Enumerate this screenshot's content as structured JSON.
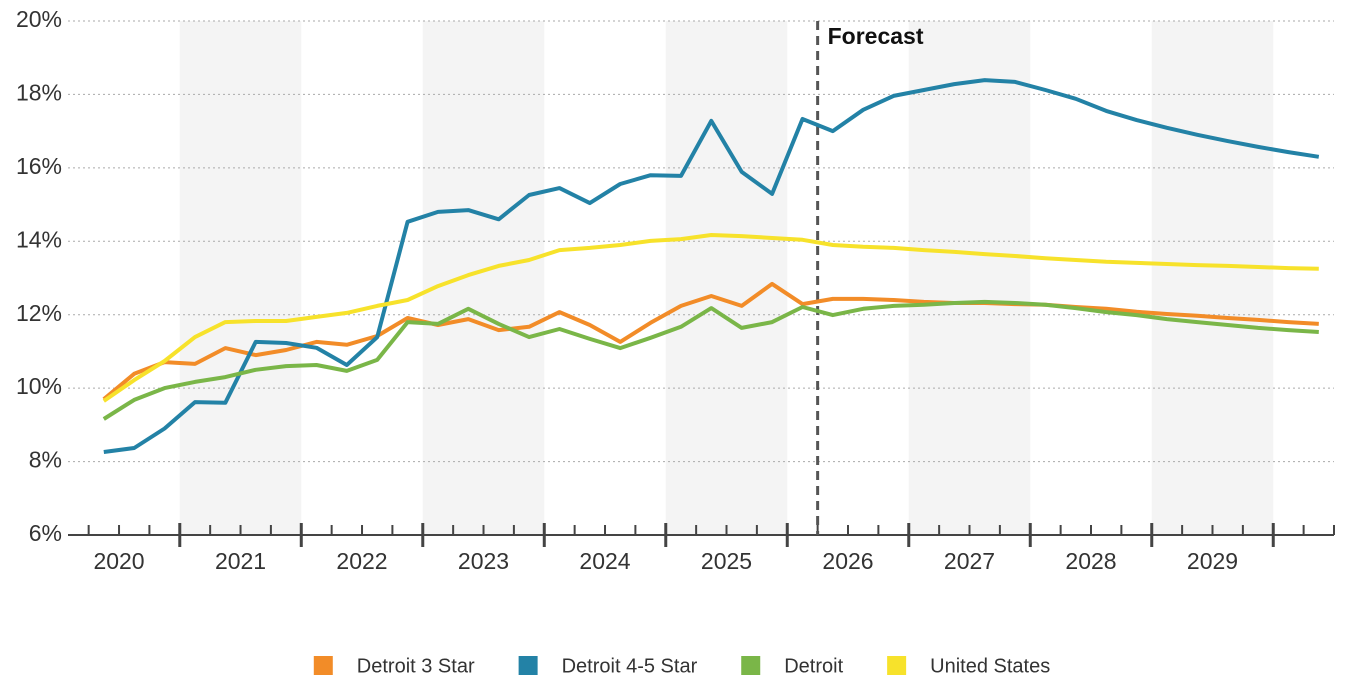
{
  "chart_data": {
    "type": "line",
    "x": [
      2020.375,
      2020.625,
      2020.875,
      2021.125,
      2021.375,
      2021.625,
      2021.875,
      2022.125,
      2022.375,
      2022.625,
      2022.875,
      2023.125,
      2023.375,
      2023.625,
      2023.875,
      2024.125,
      2024.375,
      2024.625,
      2024.875,
      2025.125,
      2025.375,
      2025.625,
      2025.875,
      2026.125,
      2026.375,
      2026.625,
      2026.875,
      2027.125,
      2027.375,
      2027.625,
      2027.875,
      2028.125,
      2028.375,
      2028.625,
      2028.875,
      2029.125,
      2029.375,
      2029.625,
      2029.875,
      2030.125,
      2030.375
    ],
    "series": [
      {
        "name": "Detroit 3 Star",
        "color": "#f28c28",
        "values": [
          9.7,
          10.39,
          10.71,
          10.66,
          11.09,
          10.9,
          11.04,
          11.26,
          11.18,
          11.42,
          11.91,
          11.72,
          11.88,
          11.58,
          11.67,
          12.07,
          11.72,
          11.26,
          11.78,
          12.24,
          12.51,
          12.24,
          12.84,
          12.29,
          12.43,
          12.43,
          12.4,
          12.35,
          12.32,
          12.32,
          12.29,
          12.27,
          12.21,
          12.16,
          12.08,
          12.02,
          11.97,
          11.91,
          11.86,
          11.8,
          11.75
        ]
      },
      {
        "name": "Detroit 4-5 Star",
        "color": "#2382a6",
        "values": [
          8.26,
          8.37,
          8.9,
          9.62,
          9.6,
          11.26,
          11.23,
          11.1,
          10.63,
          11.39,
          14.53,
          14.8,
          14.85,
          14.6,
          15.26,
          15.45,
          15.04,
          15.56,
          15.8,
          15.78,
          17.28,
          15.89,
          15.29,
          17.33,
          17.0,
          17.58,
          17.96,
          18.12,
          18.28,
          18.39,
          18.34,
          18.12,
          17.88,
          17.55,
          17.3,
          17.09,
          16.9,
          16.73,
          16.57,
          16.43,
          16.3
        ]
      },
      {
        "name": "Detroit",
        "color": "#7ab648",
        "values": [
          9.16,
          9.68,
          10.0,
          10.17,
          10.3,
          10.5,
          10.6,
          10.63,
          10.47,
          10.77,
          11.8,
          11.75,
          12.16,
          11.75,
          11.39,
          11.61,
          11.34,
          11.09,
          11.37,
          11.67,
          12.18,
          11.64,
          11.8,
          12.21,
          11.99,
          12.16,
          12.24,
          12.27,
          12.32,
          12.35,
          12.32,
          12.27,
          12.18,
          12.07,
          11.99,
          11.88,
          11.8,
          11.72,
          11.64,
          11.58,
          11.53
        ]
      },
      {
        "name": "United States",
        "color": "#f7e22b",
        "values": [
          9.65,
          10.22,
          10.74,
          11.39,
          11.8,
          11.83,
          11.83,
          11.94,
          12.05,
          12.24,
          12.4,
          12.78,
          13.08,
          13.33,
          13.49,
          13.76,
          13.82,
          13.9,
          14.01,
          14.06,
          14.17,
          14.14,
          14.09,
          14.04,
          13.9,
          13.85,
          13.82,
          13.76,
          13.71,
          13.65,
          13.6,
          13.54,
          13.49,
          13.44,
          13.41,
          13.38,
          13.35,
          13.33,
          13.3,
          13.27,
          13.25
        ]
      }
    ],
    "xlim": [
      2020.08,
      2030.5
    ],
    "xticks": [
      {
        "value": 2020.5,
        "label": "2020"
      },
      {
        "value": 2021.5,
        "label": "2021"
      },
      {
        "value": 2022.5,
        "label": "2022"
      },
      {
        "value": 2023.5,
        "label": "2023"
      },
      {
        "value": 2024.5,
        "label": "2024"
      },
      {
        "value": 2025.5,
        "label": "2025"
      },
      {
        "value": 2026.5,
        "label": "2026"
      },
      {
        "value": 2027.5,
        "label": "2027"
      },
      {
        "value": 2028.5,
        "label": "2028"
      },
      {
        "value": 2029.5,
        "label": "2029"
      }
    ],
    "ylim": [
      6,
      20
    ],
    "yticks": [
      {
        "value": 6,
        "label": "6%"
      },
      {
        "value": 8,
        "label": "8%"
      },
      {
        "value": 10,
        "label": "10%"
      },
      {
        "value": 12,
        "label": "12%"
      },
      {
        "value": 14,
        "label": "14%"
      },
      {
        "value": 16,
        "label": "16%"
      },
      {
        "value": 18,
        "label": "18%"
      },
      {
        "value": 20,
        "label": "20%"
      }
    ],
    "annotation": {
      "text": "Forecast",
      "x": 2026.25
    },
    "grid": true,
    "legend": "bottom"
  }
}
